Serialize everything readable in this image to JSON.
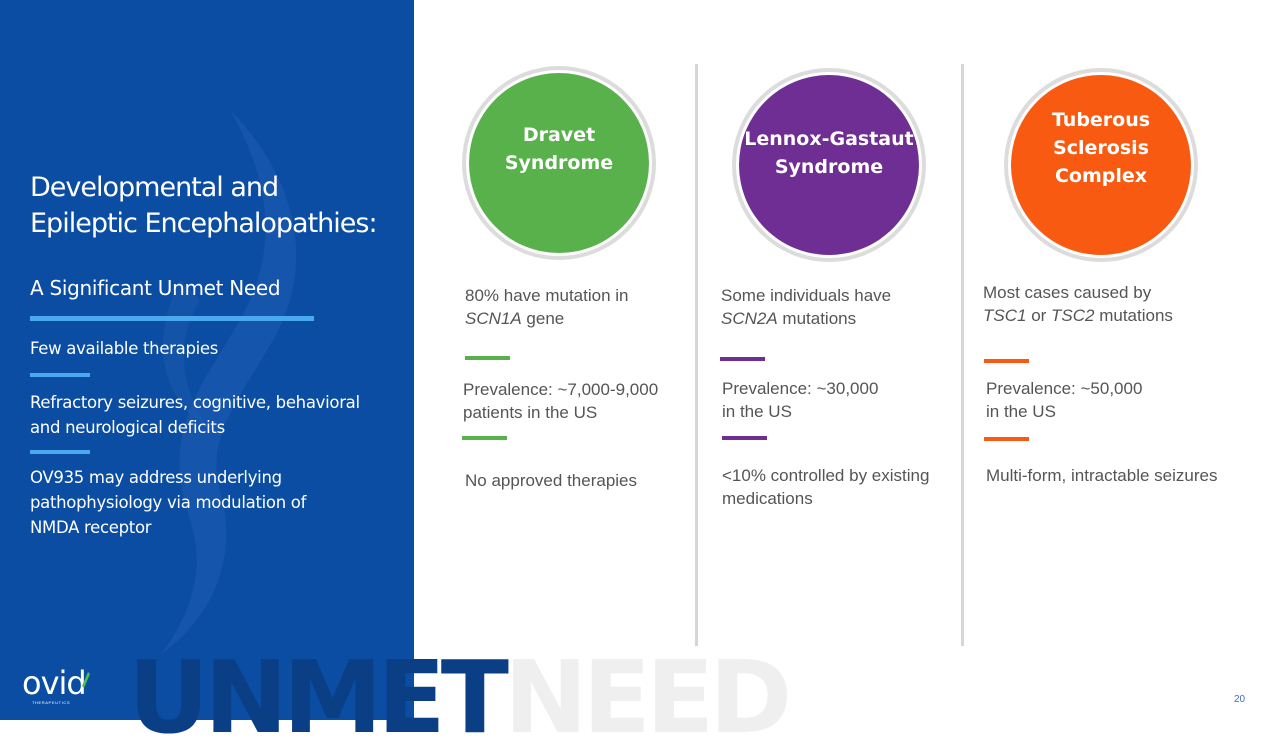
{
  "left_panel": {
    "title_line1": "Developmental and",
    "title_line2": "Epileptic Encephalopathies:",
    "subtitle": "A Significant Unmet Need",
    "points": [
      "Few available therapies",
      "Refractory seizures, cognitive, behavioral and neurological deficits",
      "OV935 may address underlying pathophysiology via modulation of NMDA receptor"
    ],
    "logo_text": "ovid",
    "logo_sub": "THERAPEUTICS"
  },
  "watermark": {
    "part1": "UNMET",
    "part2": "NEED"
  },
  "columns": [
    {
      "name_lines": [
        "Dravet",
        "Syndrome"
      ],
      "color": "#58b14b",
      "mutation": {
        "pre": "80% have mutation in",
        "gene": "SCN1A",
        "post": " gene"
      },
      "prevalence": [
        "Prevalence: ~7,000-9,000",
        "patients in the US"
      ],
      "therapy": [
        "No approved therapies"
      ]
    },
    {
      "name_lines": [
        "Lennox-Gastaut",
        "Syndrome"
      ],
      "color": "#6f2e93",
      "mutation": {
        "pre": "Some individuals have",
        "gene": "SCN2A",
        "post": " mutations"
      },
      "prevalence": [
        "Prevalence: ~30,000",
        "in the US"
      ],
      "therapy": [
        "<10% controlled by existing",
        "medications"
      ]
    },
    {
      "name_lines": [
        "Tuberous",
        "Sclerosis",
        "Complex"
      ],
      "color": "#f85a12",
      "mutation": {
        "pre": "Most cases caused by",
        "gene1": "TSC1",
        "mid": " or ",
        "gene2": "TSC2",
        "post": " mutations"
      },
      "prevalence": [
        "Prevalence: ~50,000",
        "in the US"
      ],
      "therapy": [
        "Multi-form, intractable seizures"
      ]
    }
  ],
  "page_number": "20"
}
